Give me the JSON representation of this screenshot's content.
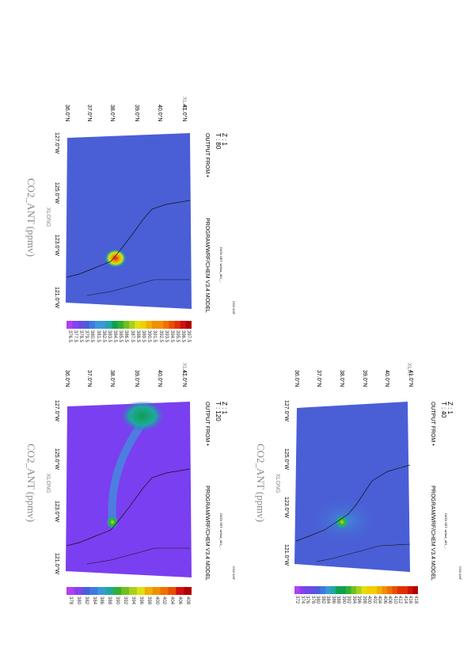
{
  "panels": [
    {
      "id": "t80",
      "z_label": "Z : 1",
      "t_label": "T : 80",
      "output_from": "OUTPUT FROM •",
      "program": "PROGRAM/WRF/CHEM V3.4 MODEL",
      "data_set": "DATA SET: wrfout_d01_...",
      "info": "CO2 ANT",
      "var_title": "CO2_ANT (ppmv)",
      "xlat_label": "XLAT",
      "xlong_label": "XLONG",
      "lat_ticks": [
        "41.0°N",
        "40.0°N",
        "39.0°N",
        "38.0°N",
        "37.0°N",
        "36.0°N"
      ],
      "lon_ticks": [
        "127.0°W",
        "125.0°W",
        "123.0°W",
        "121.0°W"
      ],
      "colorbar_ticks": [
        "376.5",
        "377.5",
        "378.5",
        "379.5",
        "380.5",
        "381.5",
        "382.5",
        "383.5",
        "384.5",
        "385.5",
        "386.5",
        "387.5",
        "388.5",
        "389.5",
        "390.5",
        "391.5",
        "392.5",
        "393.5",
        "394.5",
        "395.5",
        "396.5",
        "397.5"
      ],
      "base_color": "#4a5fd6",
      "plume_color": "#d4202a"
    },
    {
      "id": "t40",
      "z_label": "Z : 1",
      "t_label": "T : 40",
      "output_from": "OUTPUT FROM •",
      "program": "PROGRAM/WRF/CHEM V3.4 MODEL",
      "data_set": "DATA SET: wrfout_d01_...",
      "info": "CO2 ANT",
      "var_title": "CO2_ANT (ppmv)",
      "xlat_label": "XLAT",
      "xlong_label": "XLONG",
      "lat_ticks": [
        "41.0°N",
        "40.0°N",
        "39.0°N",
        "38.0°N",
        "37.0°N",
        "36.0°N"
      ],
      "lon_ticks": [
        "127.0°W",
        "125.0°W",
        "123.0°W",
        "121.0°W"
      ],
      "colorbar_ticks": [
        "372",
        "374",
        "376",
        "378",
        "380",
        "382",
        "384",
        "386",
        "388",
        "390",
        "392",
        "394",
        "396",
        "398",
        "400",
        "402",
        "404",
        "406",
        "408",
        "410",
        "412",
        "414",
        "416",
        "418"
      ],
      "base_color": "#4a5fd6",
      "plume_color": "#e0d020"
    },
    {
      "id": "t120",
      "z_label": "Z : 1",
      "t_label": "T : 120",
      "output_from": "OUTPUT FROM •",
      "program": "PROGRAM/WRF/CHEM V3.4 MODEL",
      "data_set": "DATA SET: wrfout_d01_...",
      "info": "CO2 ANT",
      "var_title": "CO2_ANT (ppmv)",
      "xlat_label": "XLAT",
      "xlong_label": "XLONG",
      "lat_ticks": [
        "41.0°N",
        "40.0°N",
        "39.0°N",
        "38.0°N",
        "37.0°N",
        "36.0°N"
      ],
      "lon_ticks": [
        "127.0°W",
        "125.0°W",
        "123.0°W",
        "121.0°W"
      ],
      "colorbar_ticks": [
        "378",
        "380",
        "382",
        "384",
        "386",
        "388",
        "390",
        "392",
        "394",
        "396",
        "398",
        "400",
        "402",
        "404",
        "406",
        "408"
      ],
      "base_color": "#7a3ff0",
      "plume_color": "#e0d020"
    }
  ],
  "colorbar_colors": [
    "#b040f0",
    "#8a3ff0",
    "#6a4ae8",
    "#4a5fd6",
    "#3f7adf",
    "#3a98d8",
    "#20a8a0",
    "#10a050",
    "#30b030",
    "#70c020",
    "#a8d020",
    "#e0e010",
    "#f0d000",
    "#f0b000",
    "#f09000",
    "#f07000",
    "#e85000",
    "#e03000",
    "#d01010",
    "#b00000"
  ]
}
